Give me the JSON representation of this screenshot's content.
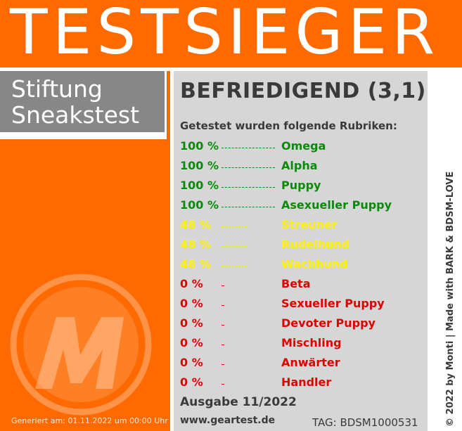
{
  "banner": {
    "title": "TESTSIEGER"
  },
  "brand": {
    "line1": "Stiftung",
    "line2": "Sneakstest"
  },
  "rating": {
    "label": "BEFRIEDIGEND (3,1)"
  },
  "subtitle": "Getestet wurden folgende Rubriken:",
  "rubrics": [
    {
      "percent": "100 %",
      "name": "Omega",
      "color": "#0a8a0a",
      "value": 100
    },
    {
      "percent": "100 %",
      "name": "Alpha",
      "color": "#0a8a0a",
      "value": 100
    },
    {
      "percent": "100 %",
      "name": "Puppy",
      "color": "#0a8a0a",
      "value": 100
    },
    {
      "percent": "100 %",
      "name": "Asexueller Puppy",
      "color": "#0a8a0a",
      "value": 100
    },
    {
      "percent": "48 %",
      "name": "Streuner",
      "color": "#fff200",
      "value": 48
    },
    {
      "percent": "48 %",
      "name": "Rudelhund",
      "color": "#fff200",
      "value": 48
    },
    {
      "percent": "48 %",
      "name": "Wachhund",
      "color": "#fff200",
      "value": 48
    },
    {
      "percent": "0 %",
      "name": "Beta",
      "color": "#e00000",
      "value": 0
    },
    {
      "percent": "0 %",
      "name": "Sexueller Puppy",
      "color": "#e00000",
      "value": 0
    },
    {
      "percent": "0 %",
      "name": "Devoter Puppy",
      "color": "#e00000",
      "value": 0
    },
    {
      "percent": "0 %",
      "name": "Mischling",
      "color": "#e00000",
      "value": 0
    },
    {
      "percent": "0 %",
      "name": "Anwärter",
      "color": "#e00000",
      "value": 0
    },
    {
      "percent": "0 %",
      "name": "Handler",
      "color": "#e00000",
      "value": 0
    }
  ],
  "issue": "Ausgabe 11/2022",
  "url": "www.geartest.de",
  "tag": "TAG: BDSM1000531",
  "generated": "Generiert am: 01.11.2022 um 00:00 Uhr",
  "credit": "© 2022 by Monti | Made with BARK & BDSM-LOVE",
  "logo": {
    "icon": "m-logo-icon",
    "letter": "M"
  },
  "colors": {
    "orange": "#ff6a00",
    "panel": "#d6d6d6",
    "brand": "#878787"
  }
}
